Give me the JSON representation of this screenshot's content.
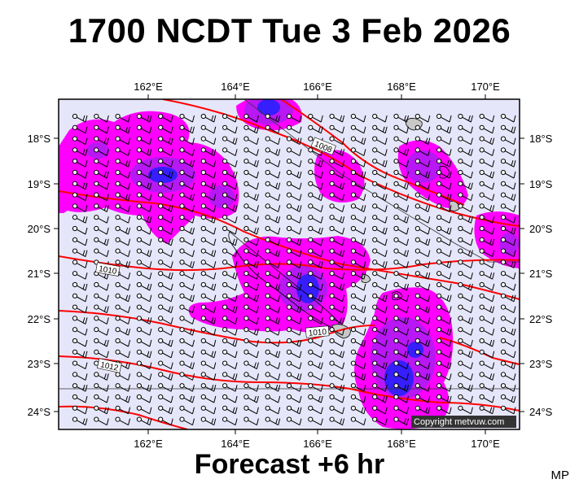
{
  "title": "1700 NCDT Tue 3 Feb 2026",
  "subtitle": "Forecast +6 hr",
  "initials": "MP",
  "copyright": "Copyright metvuw.com",
  "lon_labels": [
    "162°E",
    "164°E",
    "166°E",
    "168°E",
    "170°E"
  ],
  "lat_labels": [
    "18°S",
    "19°S",
    "20°S",
    "21°S",
    "22°S",
    "23°S",
    "24°S"
  ],
  "isobar_labels": [
    "1008",
    "1010",
    "1010",
    "1012"
  ],
  "colors": {
    "background": "#e6e6fa",
    "rain_light": "#ff00ff",
    "rain_medium": "#a020f0",
    "rain_heavy": "#0000ff",
    "isobar": "#ff0000",
    "land": "#c0c0c0"
  }
}
